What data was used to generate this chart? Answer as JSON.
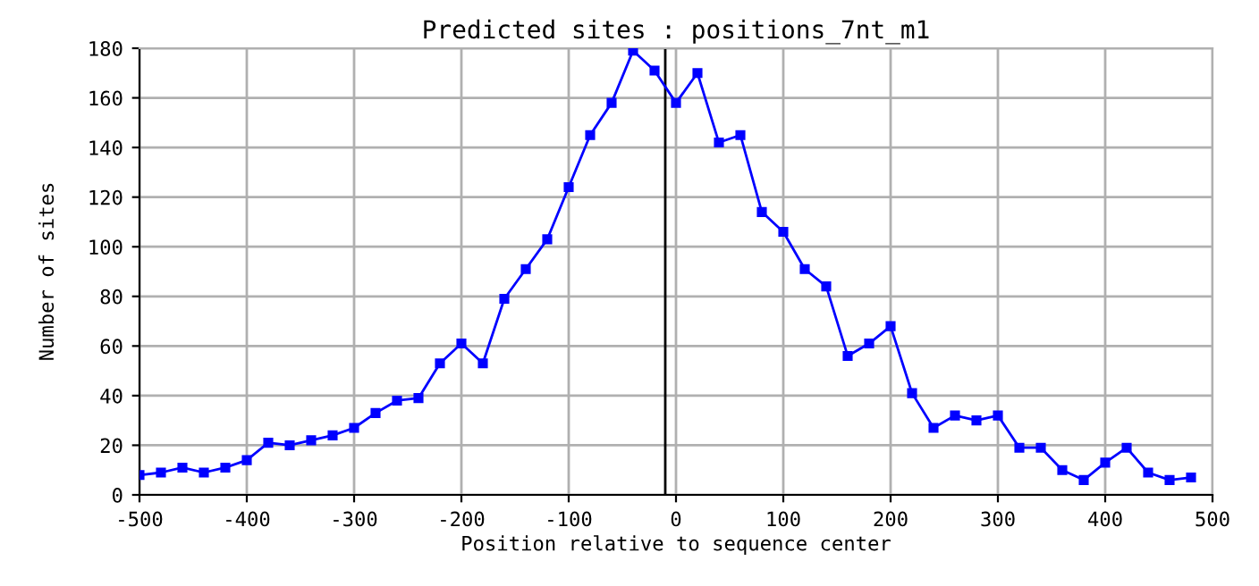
{
  "chart_data": {
    "type": "line",
    "title": "Predicted sites : positions_7nt_m1",
    "xlabel": "Position relative to sequence center",
    "ylabel": "Number of sites",
    "x": [
      -500,
      -480,
      -460,
      -440,
      -420,
      -400,
      -380,
      -360,
      -340,
      -320,
      -300,
      -280,
      -260,
      -240,
      -220,
      -200,
      -180,
      -160,
      -140,
      -120,
      -100,
      -80,
      -60,
      -40,
      -20,
      0,
      20,
      40,
      60,
      80,
      100,
      120,
      140,
      160,
      180,
      200,
      220,
      240,
      260,
      280,
      300,
      320,
      340,
      360,
      380,
      400,
      420,
      440,
      460,
      480
    ],
    "series": [
      {
        "color": "#0000ff",
        "values": [
          8,
          9,
          11,
          9,
          11,
          14,
          21,
          20,
          22,
          24,
          27,
          33,
          38,
          39,
          53,
          61,
          53,
          79,
          91,
          103,
          124,
          145,
          158,
          179,
          171,
          158,
          170,
          142,
          145,
          114,
          106,
          91,
          84,
          56,
          61,
          68,
          41,
          27,
          32,
          30,
          32,
          19,
          19,
          10,
          6,
          13,
          19,
          9,
          6,
          7
        ]
      }
    ],
    "xlim": [
      -500,
      500
    ],
    "ylim": [
      0,
      180
    ],
    "xticks": [
      -500,
      -400,
      -300,
      -200,
      -100,
      0,
      100,
      200,
      300,
      400,
      500
    ],
    "yticks": [
      0,
      20,
      40,
      60,
      80,
      100,
      120,
      140,
      160,
      180
    ],
    "ref_lines": [
      {
        "axis": "x",
        "value": -10,
        "color": "#000000"
      }
    ],
    "grid": true,
    "marker": "square",
    "line_style": "solid",
    "legend": false
  }
}
